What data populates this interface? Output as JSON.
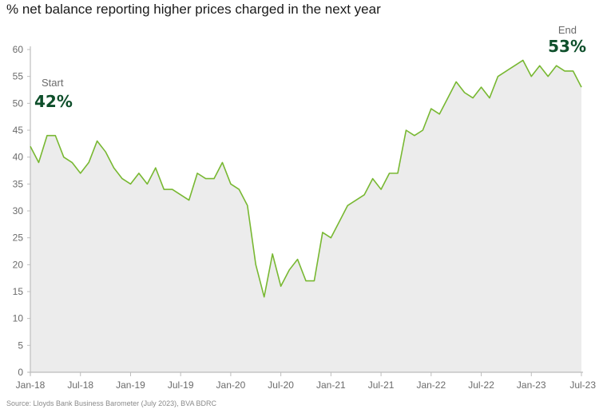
{
  "title": "% net balance reporting higher prices charged in the next year",
  "source": "Source: Lloyds Bank Business Barometer (July 2023), BVA BDRC",
  "colors": {
    "line": "#78b832",
    "area": "#ececec",
    "axis": "#bdbdbd",
    "annotation_value": "#0e4f2b",
    "text": "#6b6b6b"
  },
  "annotations": {
    "start_label": "Start",
    "start_value": "42%",
    "end_label": "End",
    "end_value": "53%"
  },
  "chart_data": {
    "type": "area",
    "x_start": "Jan-18",
    "x_end": "Jul-23",
    "frequency": "monthly",
    "x_tick_labels": [
      "Jan-18",
      "Jul-18",
      "Jan-19",
      "Jul-19",
      "Jan-20",
      "Jul-20",
      "Jan-21",
      "Jul-21",
      "Jan-22",
      "Jul-22",
      "Jan-23",
      "Jul-23"
    ],
    "y_ticks": [
      0,
      5,
      10,
      15,
      20,
      25,
      30,
      35,
      40,
      45,
      50,
      55,
      60
    ],
    "ylim": [
      0,
      60
    ],
    "grid": false,
    "series": [
      {
        "values": [
          42,
          39,
          44,
          44,
          40,
          39,
          37,
          39,
          43,
          41,
          38,
          36,
          35,
          37,
          35,
          38,
          34,
          34,
          33,
          32,
          37,
          36,
          36,
          39,
          35,
          34,
          31,
          20,
          14,
          22,
          16,
          19,
          21,
          17,
          17,
          26,
          25,
          28,
          31,
          32,
          33,
          36,
          34,
          37,
          37,
          45,
          44,
          45,
          49,
          48,
          51,
          54,
          52,
          51,
          53,
          51,
          55,
          56,
          57,
          58,
          55,
          57,
          55,
          57,
          56,
          56,
          53
        ]
      }
    ]
  }
}
